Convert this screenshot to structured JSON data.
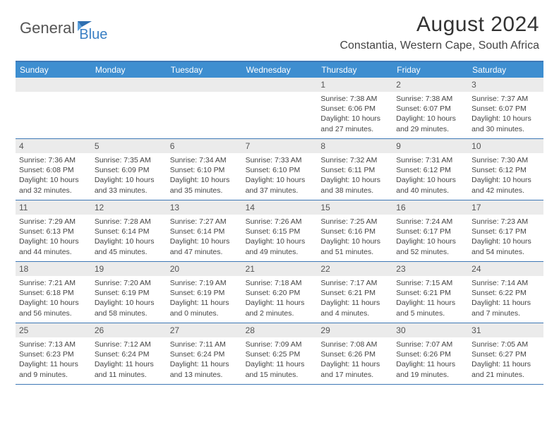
{
  "logo": {
    "text1": "General",
    "text2": "Blue"
  },
  "title": "August 2024",
  "location": "Constantia, Western Cape, South Africa",
  "colors": {
    "header_bg": "#3e8ed0",
    "border": "#3e78b6",
    "daynum_bg": "#ebebeb",
    "text": "#444444",
    "title": "#333333",
    "logo_gray": "#555555",
    "logo_blue": "#3a7fc4"
  },
  "day_names": [
    "Sunday",
    "Monday",
    "Tuesday",
    "Wednesday",
    "Thursday",
    "Friday",
    "Saturday"
  ],
  "weeks": [
    [
      {
        "n": "",
        "sr": "",
        "ss": "",
        "dl": ""
      },
      {
        "n": "",
        "sr": "",
        "ss": "",
        "dl": ""
      },
      {
        "n": "",
        "sr": "",
        "ss": "",
        "dl": ""
      },
      {
        "n": "",
        "sr": "",
        "ss": "",
        "dl": ""
      },
      {
        "n": "1",
        "sr": "Sunrise: 7:38 AM",
        "ss": "Sunset: 6:06 PM",
        "dl": "Daylight: 10 hours and 27 minutes."
      },
      {
        "n": "2",
        "sr": "Sunrise: 7:38 AM",
        "ss": "Sunset: 6:07 PM",
        "dl": "Daylight: 10 hours and 29 minutes."
      },
      {
        "n": "3",
        "sr": "Sunrise: 7:37 AM",
        "ss": "Sunset: 6:07 PM",
        "dl": "Daylight: 10 hours and 30 minutes."
      }
    ],
    [
      {
        "n": "4",
        "sr": "Sunrise: 7:36 AM",
        "ss": "Sunset: 6:08 PM",
        "dl": "Daylight: 10 hours and 32 minutes."
      },
      {
        "n": "5",
        "sr": "Sunrise: 7:35 AM",
        "ss": "Sunset: 6:09 PM",
        "dl": "Daylight: 10 hours and 33 minutes."
      },
      {
        "n": "6",
        "sr": "Sunrise: 7:34 AM",
        "ss": "Sunset: 6:10 PM",
        "dl": "Daylight: 10 hours and 35 minutes."
      },
      {
        "n": "7",
        "sr": "Sunrise: 7:33 AM",
        "ss": "Sunset: 6:10 PM",
        "dl": "Daylight: 10 hours and 37 minutes."
      },
      {
        "n": "8",
        "sr": "Sunrise: 7:32 AM",
        "ss": "Sunset: 6:11 PM",
        "dl": "Daylight: 10 hours and 38 minutes."
      },
      {
        "n": "9",
        "sr": "Sunrise: 7:31 AM",
        "ss": "Sunset: 6:12 PM",
        "dl": "Daylight: 10 hours and 40 minutes."
      },
      {
        "n": "10",
        "sr": "Sunrise: 7:30 AM",
        "ss": "Sunset: 6:12 PM",
        "dl": "Daylight: 10 hours and 42 minutes."
      }
    ],
    [
      {
        "n": "11",
        "sr": "Sunrise: 7:29 AM",
        "ss": "Sunset: 6:13 PM",
        "dl": "Daylight: 10 hours and 44 minutes."
      },
      {
        "n": "12",
        "sr": "Sunrise: 7:28 AM",
        "ss": "Sunset: 6:14 PM",
        "dl": "Daylight: 10 hours and 45 minutes."
      },
      {
        "n": "13",
        "sr": "Sunrise: 7:27 AM",
        "ss": "Sunset: 6:14 PM",
        "dl": "Daylight: 10 hours and 47 minutes."
      },
      {
        "n": "14",
        "sr": "Sunrise: 7:26 AM",
        "ss": "Sunset: 6:15 PM",
        "dl": "Daylight: 10 hours and 49 minutes."
      },
      {
        "n": "15",
        "sr": "Sunrise: 7:25 AM",
        "ss": "Sunset: 6:16 PM",
        "dl": "Daylight: 10 hours and 51 minutes."
      },
      {
        "n": "16",
        "sr": "Sunrise: 7:24 AM",
        "ss": "Sunset: 6:17 PM",
        "dl": "Daylight: 10 hours and 52 minutes."
      },
      {
        "n": "17",
        "sr": "Sunrise: 7:23 AM",
        "ss": "Sunset: 6:17 PM",
        "dl": "Daylight: 10 hours and 54 minutes."
      }
    ],
    [
      {
        "n": "18",
        "sr": "Sunrise: 7:21 AM",
        "ss": "Sunset: 6:18 PM",
        "dl": "Daylight: 10 hours and 56 minutes."
      },
      {
        "n": "19",
        "sr": "Sunrise: 7:20 AM",
        "ss": "Sunset: 6:19 PM",
        "dl": "Daylight: 10 hours and 58 minutes."
      },
      {
        "n": "20",
        "sr": "Sunrise: 7:19 AM",
        "ss": "Sunset: 6:19 PM",
        "dl": "Daylight: 11 hours and 0 minutes."
      },
      {
        "n": "21",
        "sr": "Sunrise: 7:18 AM",
        "ss": "Sunset: 6:20 PM",
        "dl": "Daylight: 11 hours and 2 minutes."
      },
      {
        "n": "22",
        "sr": "Sunrise: 7:17 AM",
        "ss": "Sunset: 6:21 PM",
        "dl": "Daylight: 11 hours and 4 minutes."
      },
      {
        "n": "23",
        "sr": "Sunrise: 7:15 AM",
        "ss": "Sunset: 6:21 PM",
        "dl": "Daylight: 11 hours and 5 minutes."
      },
      {
        "n": "24",
        "sr": "Sunrise: 7:14 AM",
        "ss": "Sunset: 6:22 PM",
        "dl": "Daylight: 11 hours and 7 minutes."
      }
    ],
    [
      {
        "n": "25",
        "sr": "Sunrise: 7:13 AM",
        "ss": "Sunset: 6:23 PM",
        "dl": "Daylight: 11 hours and 9 minutes."
      },
      {
        "n": "26",
        "sr": "Sunrise: 7:12 AM",
        "ss": "Sunset: 6:24 PM",
        "dl": "Daylight: 11 hours and 11 minutes."
      },
      {
        "n": "27",
        "sr": "Sunrise: 7:11 AM",
        "ss": "Sunset: 6:24 PM",
        "dl": "Daylight: 11 hours and 13 minutes."
      },
      {
        "n": "28",
        "sr": "Sunrise: 7:09 AM",
        "ss": "Sunset: 6:25 PM",
        "dl": "Daylight: 11 hours and 15 minutes."
      },
      {
        "n": "29",
        "sr": "Sunrise: 7:08 AM",
        "ss": "Sunset: 6:26 PM",
        "dl": "Daylight: 11 hours and 17 minutes."
      },
      {
        "n": "30",
        "sr": "Sunrise: 7:07 AM",
        "ss": "Sunset: 6:26 PM",
        "dl": "Daylight: 11 hours and 19 minutes."
      },
      {
        "n": "31",
        "sr": "Sunrise: 7:05 AM",
        "ss": "Sunset: 6:27 PM",
        "dl": "Daylight: 11 hours and 21 minutes."
      }
    ]
  ]
}
